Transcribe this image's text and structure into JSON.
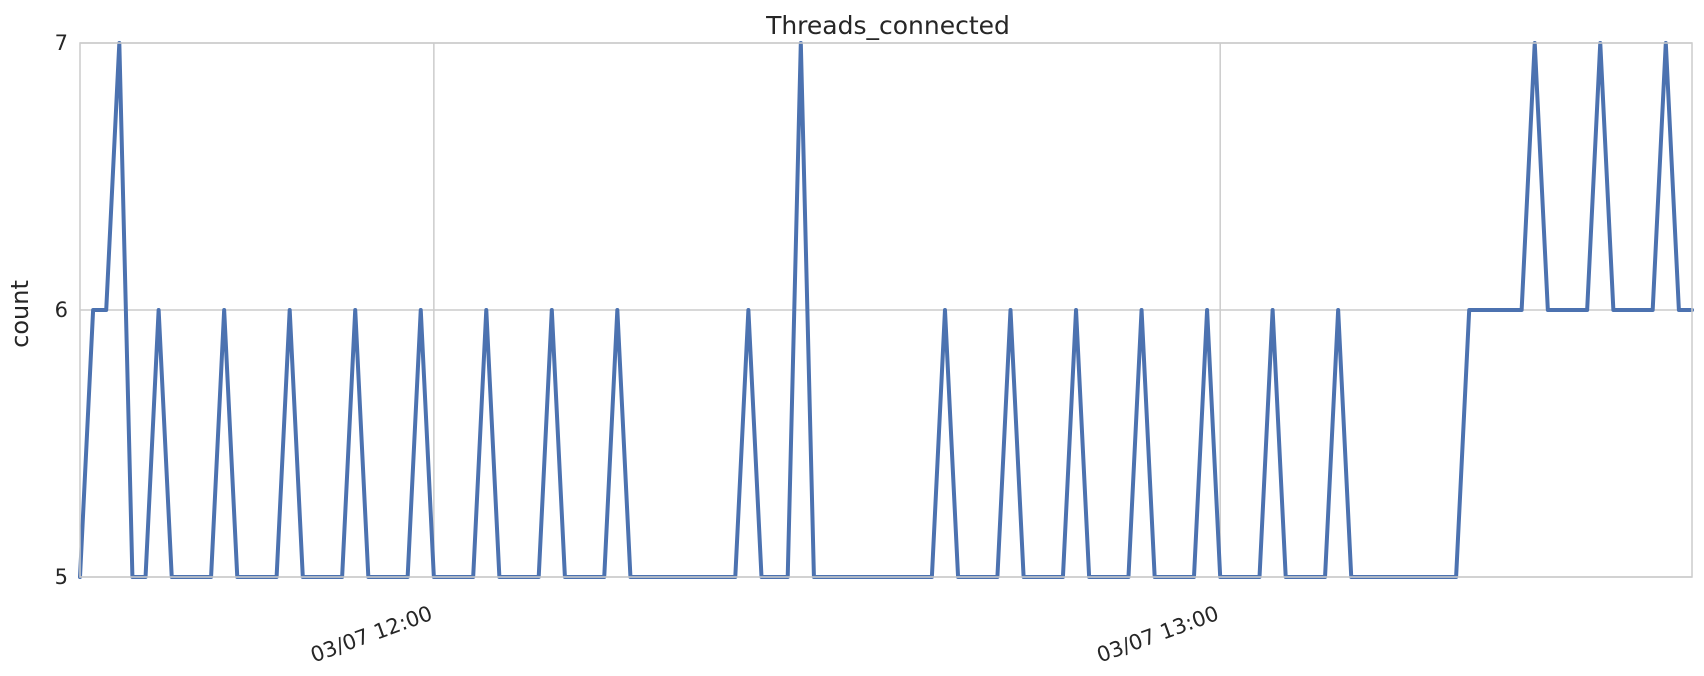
{
  "chart_data": {
    "type": "line",
    "title": "Threads_connected",
    "xlabel": "",
    "ylabel": "count",
    "ylim": [
      5,
      7
    ],
    "xlim": [
      "2016-03-07 11:33",
      "2016-03-07 13:36"
    ],
    "yticks": [
      5,
      6,
      7
    ],
    "xticks": [
      {
        "x": "2016-03-07 12:00",
        "label": "03/07 12:00"
      },
      {
        "x": "2016-03-07 13:00",
        "label": "03/07 13:00"
      }
    ],
    "grid": true,
    "legend": "none",
    "series": [
      {
        "color": "#4c72b0",
        "x": [
          "2016-03-07 11:33",
          "2016-03-07 11:34",
          "2016-03-07 11:35",
          "2016-03-07 11:36",
          "2016-03-07 11:37",
          "2016-03-07 11:38",
          "2016-03-07 11:39",
          "2016-03-07 11:40",
          "2016-03-07 11:41",
          "2016-03-07 11:42",
          "2016-03-07 11:43",
          "2016-03-07 11:44",
          "2016-03-07 11:45",
          "2016-03-07 11:46",
          "2016-03-07 11:47",
          "2016-03-07 11:48",
          "2016-03-07 11:49",
          "2016-03-07 11:50",
          "2016-03-07 11:51",
          "2016-03-07 11:52",
          "2016-03-07 11:53",
          "2016-03-07 11:54",
          "2016-03-07 11:55",
          "2016-03-07 11:56",
          "2016-03-07 11:57",
          "2016-03-07 11:58",
          "2016-03-07 11:59",
          "2016-03-07 12:00",
          "2016-03-07 12:01",
          "2016-03-07 12:02",
          "2016-03-07 12:03",
          "2016-03-07 12:04",
          "2016-03-07 12:05",
          "2016-03-07 12:06",
          "2016-03-07 12:07",
          "2016-03-07 12:08",
          "2016-03-07 12:09",
          "2016-03-07 12:10",
          "2016-03-07 12:11",
          "2016-03-07 12:12",
          "2016-03-07 12:13",
          "2016-03-07 12:14",
          "2016-03-07 12:15",
          "2016-03-07 12:16",
          "2016-03-07 12:17",
          "2016-03-07 12:18",
          "2016-03-07 12:19",
          "2016-03-07 12:20",
          "2016-03-07 12:21",
          "2016-03-07 12:22",
          "2016-03-07 12:23",
          "2016-03-07 12:24",
          "2016-03-07 12:25",
          "2016-03-07 12:26",
          "2016-03-07 12:27",
          "2016-03-07 12:28",
          "2016-03-07 12:29",
          "2016-03-07 12:30",
          "2016-03-07 12:31",
          "2016-03-07 12:32",
          "2016-03-07 12:33",
          "2016-03-07 12:34",
          "2016-03-07 12:35",
          "2016-03-07 12:36",
          "2016-03-07 12:37",
          "2016-03-07 12:38",
          "2016-03-07 12:39",
          "2016-03-07 12:40",
          "2016-03-07 12:41",
          "2016-03-07 12:42",
          "2016-03-07 12:43",
          "2016-03-07 12:44",
          "2016-03-07 12:45",
          "2016-03-07 12:46",
          "2016-03-07 12:47",
          "2016-03-07 12:48",
          "2016-03-07 12:49",
          "2016-03-07 12:50",
          "2016-03-07 12:51",
          "2016-03-07 12:52",
          "2016-03-07 12:53",
          "2016-03-07 12:54",
          "2016-03-07 12:55",
          "2016-03-07 12:56",
          "2016-03-07 12:57",
          "2016-03-07 12:58",
          "2016-03-07 12:59",
          "2016-03-07 13:00",
          "2016-03-07 13:01",
          "2016-03-07 13:02",
          "2016-03-07 13:03",
          "2016-03-07 13:04",
          "2016-03-07 13:05",
          "2016-03-07 13:06",
          "2016-03-07 13:07",
          "2016-03-07 13:08",
          "2016-03-07 13:09",
          "2016-03-07 13:10",
          "2016-03-07 13:11",
          "2016-03-07 13:12",
          "2016-03-07 13:13",
          "2016-03-07 13:14",
          "2016-03-07 13:15",
          "2016-03-07 13:16",
          "2016-03-07 13:17",
          "2016-03-07 13:18",
          "2016-03-07 13:19",
          "2016-03-07 13:20",
          "2016-03-07 13:21",
          "2016-03-07 13:22",
          "2016-03-07 13:23",
          "2016-03-07 13:24",
          "2016-03-07 13:25",
          "2016-03-07 13:26",
          "2016-03-07 13:27",
          "2016-03-07 13:28",
          "2016-03-07 13:29",
          "2016-03-07 13:30",
          "2016-03-07 13:31",
          "2016-03-07 13:32",
          "2016-03-07 13:33",
          "2016-03-07 13:34",
          "2016-03-07 13:35",
          "2016-03-07 13:36"
        ],
        "y": [
          5,
          6,
          6,
          7,
          5,
          5,
          6,
          5,
          5,
          5,
          5,
          6,
          5,
          5,
          5,
          5,
          6,
          5,
          5,
          5,
          5,
          6,
          5,
          5,
          5,
          5,
          6,
          5,
          5,
          5,
          5,
          6,
          5,
          5,
          5,
          5,
          6,
          5,
          5,
          5,
          5,
          6,
          5,
          5,
          5,
          5,
          5,
          5,
          5,
          5,
          5,
          6,
          5,
          5,
          5,
          7,
          5,
          5,
          5,
          5,
          5,
          5,
          5,
          5,
          5,
          5,
          6,
          5,
          5,
          5,
          5,
          6,
          5,
          5,
          5,
          5,
          6,
          5,
          5,
          5,
          5,
          6,
          5,
          5,
          5,
          5,
          6,
          5,
          5,
          5,
          5,
          6,
          5,
          5,
          5,
          5,
          6,
          5,
          5,
          5,
          5,
          5,
          5,
          5,
          5,
          5,
          6,
          6,
          6,
          6,
          6,
          7,
          6,
          6,
          6,
          6,
          7,
          6,
          6,
          6,
          6,
          7,
          6,
          6
        ]
      }
    ]
  }
}
